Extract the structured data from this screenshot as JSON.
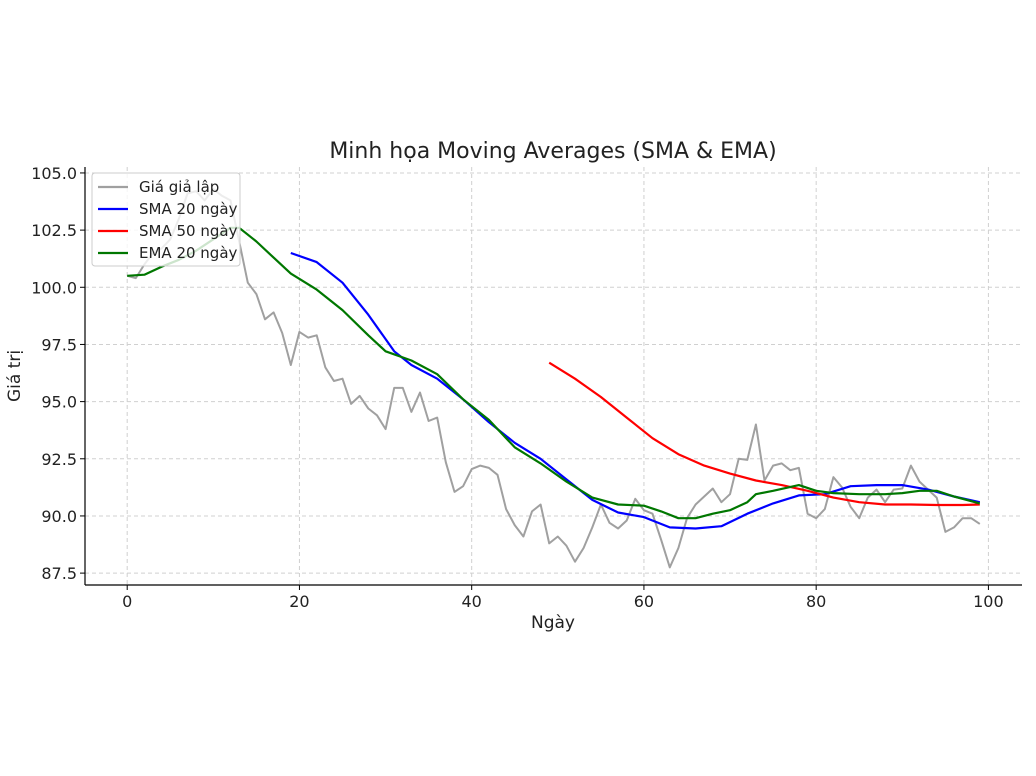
{
  "chart_data": {
    "type": "line",
    "title": "Minh họa Moving Averages (SMA & EMA)",
    "xlabel": "Ngày",
    "ylabel": "Giá trị",
    "xlim": [
      -4.9,
      103.9
    ],
    "ylim": [
      86.98,
      105.26
    ],
    "xticks": [
      0,
      20,
      40,
      60,
      80,
      100
    ],
    "yticks": [
      87.5,
      90.0,
      92.5,
      95.0,
      97.5,
      100.0,
      102.5,
      105.0
    ],
    "grid": true,
    "legend_position": "top-left",
    "series": [
      {
        "name": "Giá giả lập",
        "color": "#a0a0a0",
        "x": [
          0,
          1,
          2,
          3,
          4,
          5,
          6,
          7,
          8,
          9,
          10,
          11,
          12,
          13,
          14,
          15,
          16,
          17,
          18,
          19,
          20,
          21,
          22,
          23,
          24,
          25,
          26,
          27,
          28,
          29,
          30,
          31,
          32,
          33,
          34,
          35,
          36,
          37,
          38,
          39,
          40,
          41,
          42,
          43,
          44,
          45,
          46,
          47,
          48,
          49,
          50,
          51,
          52,
          53,
          54,
          55,
          56,
          57,
          58,
          59,
          60,
          61,
          62,
          63,
          64,
          65,
          66,
          67,
          68,
          69,
          70,
          71,
          72,
          73,
          74,
          75,
          76,
          77,
          78,
          79,
          80,
          81,
          82,
          83,
          84,
          85,
          86,
          87,
          88,
          89,
          90,
          91,
          92,
          93,
          94,
          95,
          96,
          97,
          98,
          99
        ],
        "y": [
          100.5,
          100.4,
          101.0,
          101.5,
          101.7,
          102.1,
          103.0,
          104.1,
          104.2,
          103.8,
          104.3,
          104.0,
          103.8,
          102.0,
          100.2,
          99.7,
          98.6,
          98.9,
          98.0,
          96.6,
          98.05,
          97.8,
          97.9,
          96.5,
          95.9,
          96.0,
          94.9,
          95.25,
          94.7,
          94.4,
          93.8,
          95.6,
          95.6,
          94.55,
          95.4,
          94.15,
          94.3,
          92.35,
          91.05,
          91.3,
          92.05,
          92.2,
          92.1,
          91.8,
          90.3,
          89.6,
          89.1,
          90.2,
          90.5,
          88.8,
          89.1,
          88.7,
          88.0,
          88.6,
          89.5,
          90.5,
          89.7,
          89.45,
          89.8,
          90.75,
          90.25,
          90.1,
          88.95,
          87.75,
          88.6,
          89.9,
          90.5,
          90.85,
          91.2,
          90.6,
          90.95,
          92.5,
          92.45,
          94.0,
          91.55,
          92.2,
          92.3,
          92.0,
          92.1,
          90.1,
          89.9,
          90.3,
          91.7,
          91.25,
          90.4,
          89.9,
          90.8,
          91.15,
          90.6,
          91.15,
          91.2,
          92.2,
          91.5,
          91.15,
          90.8,
          89.3,
          89.5,
          89.9,
          89.9,
          89.65
        ]
      },
      {
        "name": "SMA 20 ngày",
        "color": "#0000ff",
        "x": [
          19,
          22,
          25,
          28,
          31,
          33,
          36,
          39,
          42,
          45,
          48,
          51,
          54,
          57,
          60,
          63,
          66,
          69,
          72,
          75,
          78,
          81,
          84,
          87,
          90,
          93,
          96,
          99
        ],
        "y": [
          101.5,
          101.1,
          100.2,
          98.8,
          97.2,
          96.6,
          96.0,
          95.1,
          94.1,
          93.2,
          92.5,
          91.6,
          90.7,
          90.15,
          89.95,
          89.5,
          89.45,
          89.55,
          90.1,
          90.55,
          90.9,
          90.95,
          91.3,
          91.35,
          91.35,
          91.15,
          90.85,
          90.6
        ]
      },
      {
        "name": "SMA 50 ngày",
        "color": "#ff0000",
        "x": [
          49,
          52,
          55,
          58,
          61,
          64,
          67,
          70,
          73,
          76,
          79,
          82,
          85,
          88,
          91,
          94,
          97,
          99
        ],
        "y": [
          96.7,
          96.0,
          95.2,
          94.3,
          93.4,
          92.7,
          92.2,
          91.85,
          91.55,
          91.35,
          91.1,
          90.8,
          90.6,
          90.5,
          90.5,
          90.48,
          90.48,
          90.5
        ]
      },
      {
        "name": "EMA 20 ngày",
        "color": "#007700",
        "x": [
          0,
          2,
          4,
          6,
          8,
          10,
          12,
          13,
          15,
          17,
          19,
          22,
          25,
          28,
          30,
          33,
          36,
          39,
          42,
          45,
          48,
          51,
          54,
          57,
          60,
          62,
          64,
          66,
          68,
          70,
          72,
          73,
          75,
          78,
          80,
          82,
          85,
          88,
          90,
          92,
          94,
          96,
          99
        ],
        "y": [
          100.5,
          100.55,
          100.9,
          101.2,
          101.6,
          102.1,
          102.6,
          102.6,
          102.0,
          101.3,
          100.6,
          99.9,
          99.0,
          97.9,
          97.2,
          96.8,
          96.2,
          95.1,
          94.2,
          93.0,
          92.3,
          91.5,
          90.8,
          90.5,
          90.45,
          90.2,
          89.9,
          89.9,
          90.1,
          90.25,
          90.6,
          90.95,
          91.1,
          91.35,
          91.1,
          91.0,
          90.95,
          90.95,
          91.0,
          91.1,
          91.1,
          90.85,
          90.55
        ]
      }
    ]
  }
}
